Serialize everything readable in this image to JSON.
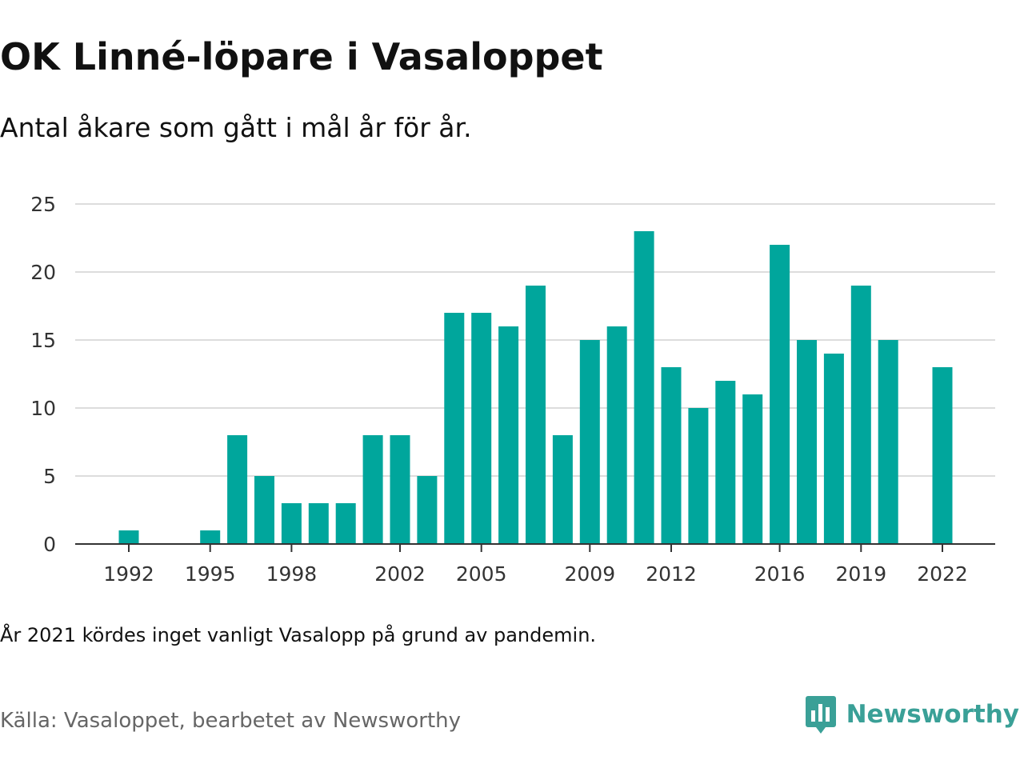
{
  "title": "OK Linné-löpare i Vasaloppet",
  "subtitle": "Antal åkare som gått i mål år för år.",
  "note": "År 2021 kördes inget vanligt Vasalopp på grund av pandemin.",
  "source": "Källa: Vasaloppet, bearbetet av Newsworthy",
  "brand": {
    "name": "Newsworthy",
    "icon": "newsworthy-logo-icon",
    "color": "#3aa097"
  },
  "colors": {
    "bar": "#00a69c",
    "grid": "#dddddd",
    "axis": "#333333",
    "tick_text": "#333333"
  },
  "chart_data": {
    "type": "bar",
    "categories": [
      "1992",
      "1993",
      "1994",
      "1995",
      "1996",
      "1997",
      "1998",
      "1999",
      "2000",
      "2001",
      "2002",
      "2003",
      "2004",
      "2005",
      "2006",
      "2007",
      "2008",
      "2009",
      "2010",
      "2011",
      "2012",
      "2013",
      "2014",
      "2015",
      "2016",
      "2017",
      "2018",
      "2019",
      "2020",
      "2021",
      "2022"
    ],
    "values": [
      1,
      0,
      0,
      1,
      8,
      5,
      3,
      3,
      3,
      8,
      8,
      5,
      17,
      17,
      16,
      19,
      8,
      15,
      16,
      23,
      13,
      10,
      12,
      11,
      22,
      15,
      14,
      19,
      15,
      0,
      13
    ],
    "x_tick_labels": [
      "1992",
      "1995",
      "1998",
      "2002",
      "2005",
      "2009",
      "2012",
      "2016",
      "2019",
      "2022"
    ],
    "y_ticks": [
      0,
      5,
      10,
      15,
      20,
      25
    ],
    "ylim": [
      0,
      25
    ],
    "grid": true,
    "xlabel": "",
    "ylabel": ""
  }
}
